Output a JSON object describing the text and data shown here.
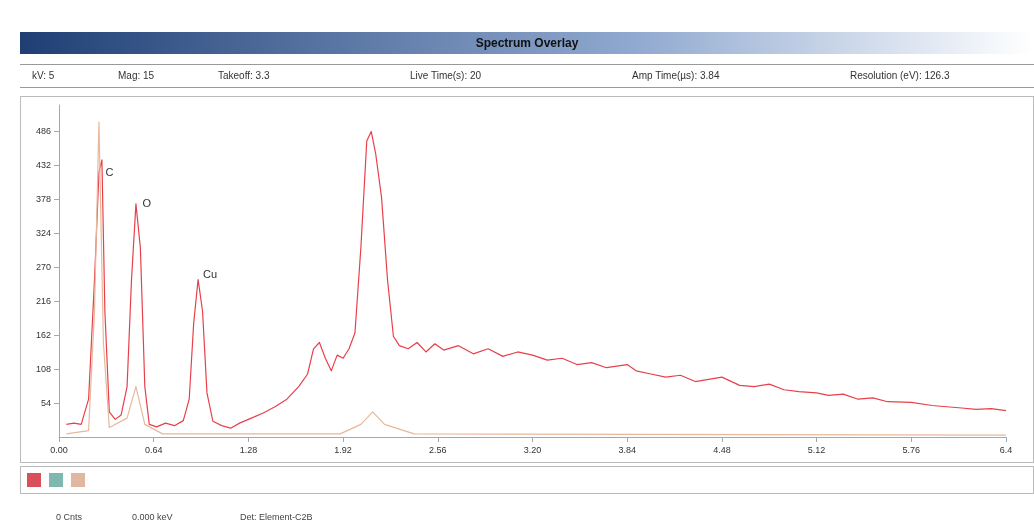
{
  "chart_data": {
    "type": "line",
    "title": "Spectrum Overlay",
    "annotations": [
      "kV: 5",
      "Mag: 15",
      "Takeoff: 3.3",
      "Live Time(s): 20",
      "Amp Time(µs): 3.84",
      "Resolution (eV): 126.3",
      "0 Cnts",
      "0.000 keV",
      "Det: Element-C2B",
      {
        "text": "C",
        "x": 0.28,
        "y": 420
      },
      {
        "text": "O",
        "x": 0.53,
        "y": 372
      },
      {
        "text": "Cu",
        "x": 0.94,
        "y": 258
      }
    ],
    "series": [
      {
        "color": "#e8404a",
        "x": [
          0.05,
          0.1,
          0.15,
          0.2,
          0.24,
          0.27,
          0.29,
          0.31,
          0.34,
          0.38,
          0.42,
          0.46,
          0.49,
          0.52,
          0.55,
          0.58,
          0.61,
          0.66,
          0.72,
          0.78,
          0.84,
          0.88,
          0.91,
          0.94,
          0.97,
          1.0,
          1.04,
          1.1,
          1.16,
          1.22,
          1.3,
          1.38,
          1.46,
          1.54,
          1.62,
          1.68,
          1.72,
          1.76,
          1.8,
          1.84,
          1.88,
          1.92,
          1.96,
          2.0,
          2.04,
          2.08,
          2.11,
          2.14,
          2.18,
          2.22,
          2.26,
          2.3,
          2.36,
          2.42,
          2.48,
          2.54,
          2.6,
          2.7,
          2.8,
          2.9,
          3.0,
          3.1,
          3.2,
          3.3,
          3.4,
          3.5,
          3.6,
          3.7,
          3.84,
          3.9,
          4.0,
          4.1,
          4.2,
          4.3,
          4.4,
          4.48,
          4.6,
          4.7,
          4.8,
          4.9,
          5.0,
          5.12,
          5.2,
          5.3,
          5.4,
          5.5,
          5.6,
          5.76,
          5.9,
          6.0,
          6.1,
          6.2,
          6.3,
          6.4
        ],
        "values": [
          20,
          22,
          20,
          60,
          250,
          420,
          440,
          200,
          40,
          28,
          35,
          80,
          250,
          370,
          300,
          80,
          20,
          16,
          22,
          18,
          26,
          60,
          180,
          250,
          200,
          70,
          25,
          18,
          14,
          22,
          30,
          38,
          48,
          60,
          80,
          100,
          140,
          150,
          125,
          105,
          130,
          125,
          140,
          165,
          300,
          470,
          485,
          450,
          380,
          250,
          160,
          145,
          140,
          150,
          135,
          148,
          138,
          145,
          132,
          140,
          128,
          135,
          130,
          122,
          125,
          115,
          118,
          110,
          115,
          105,
          100,
          95,
          98,
          88,
          92,
          95,
          82,
          80,
          84,
          75,
          72,
          70,
          66,
          68,
          60,
          62,
          56,
          55,
          50,
          48,
          46,
          44,
          45,
          42
        ]
      },
      {
        "color": "#e8b89a",
        "x": [
          0.05,
          0.2,
          0.24,
          0.27,
          0.3,
          0.34,
          0.46,
          0.52,
          0.58,
          0.7,
          1.9,
          2.04,
          2.12,
          2.2,
          2.4,
          6.4
        ],
        "values": [
          5,
          10,
          200,
          500,
          150,
          15,
          30,
          80,
          20,
          5,
          5,
          20,
          40,
          20,
          5,
          3
        ]
      }
    ],
    "xlim": [
      0,
      6.4
    ],
    "xticks": [
      {
        "value": 0,
        "label": "0.00"
      },
      0.64,
      1.28,
      1.92,
      2.56,
      {
        "value": 3.2,
        "label": "3.20"
      },
      3.84,
      4.48,
      5.12,
      5.76,
      6.4
    ],
    "ylim": [
      0,
      527
    ],
    "yticks": [
      54,
      108,
      162,
      216,
      270,
      324,
      378,
      432,
      486
    ],
    "grid": false,
    "marker": "none",
    "line_style": "solid"
  }
}
